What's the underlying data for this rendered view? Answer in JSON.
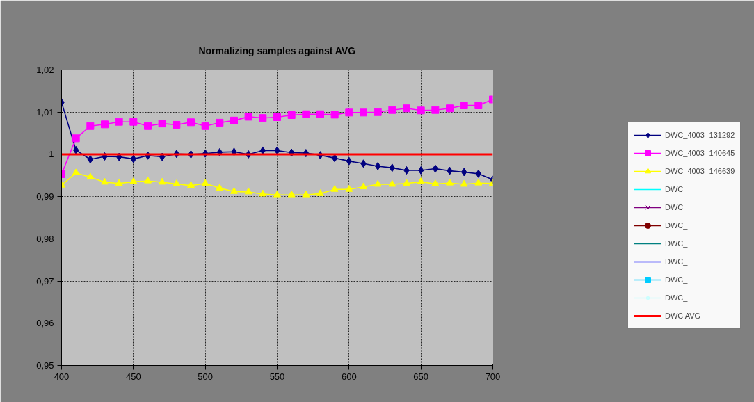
{
  "chart_data": {
    "type": "line",
    "title": "Normalizing samples against AVG",
    "x": [
      400,
      410,
      420,
      430,
      440,
      450,
      460,
      470,
      480,
      490,
      500,
      510,
      520,
      530,
      540,
      550,
      560,
      570,
      580,
      590,
      600,
      610,
      620,
      630,
      640,
      650,
      660,
      670,
      680,
      690,
      700
    ],
    "xlim": [
      400,
      700
    ],
    "xticks": [
      400,
      450,
      500,
      550,
      600,
      650,
      700
    ],
    "ylim": [
      0.95,
      1.02
    ],
    "yticks": [
      {
        "value": 0.95,
        "label": "0,95"
      },
      {
        "value": 0.96,
        "label": "0,96"
      },
      {
        "value": 0.97,
        "label": "0,97"
      },
      {
        "value": 0.98,
        "label": "0,98"
      },
      {
        "value": 0.99,
        "label": "0,99"
      },
      {
        "value": 1,
        "label": "1"
      },
      {
        "value": 1.01,
        "label": "1,01"
      },
      {
        "value": 1.02,
        "label": "1,02"
      }
    ],
    "grid": true,
    "legend": "right",
    "series": [
      {
        "name": "DWC_4003 -131292",
        "color": "#000080",
        "marker": "diamond",
        "values": [
          1.0123,
          1.001,
          0.9988,
          0.9995,
          0.9994,
          0.9989,
          0.9997,
          0.9994,
          1.0001,
          1.0,
          1.0002,
          1.0005,
          1.0006,
          1.0,
          1.0009,
          1.0009,
          1.0004,
          1.0003,
          0.9998,
          0.9991,
          0.9984,
          0.9978,
          0.9972,
          0.9968,
          0.9962,
          0.9962,
          0.9966,
          0.9961,
          0.9958,
          0.9954,
          0.994
        ]
      },
      {
        "name": "DWC_4003 -140645",
        "color": "#ff00ff",
        "marker": "square",
        "values": [
          0.9953,
          1.0038,
          1.0067,
          1.0071,
          1.0077,
          1.0077,
          1.0067,
          1.0073,
          1.007,
          1.0076,
          1.0067,
          1.0075,
          1.008,
          1.0089,
          1.0086,
          1.0088,
          1.0093,
          1.0095,
          1.0095,
          1.0094,
          1.0099,
          1.0099,
          1.01,
          1.0105,
          1.0109,
          1.0104,
          1.0105,
          1.0109,
          1.0116,
          1.0116,
          1.013
        ]
      },
      {
        "name": "DWC_4003 -146639",
        "color": "#ffff00",
        "marker": "triangle",
        "values": [
          0.9927,
          0.9956,
          0.9946,
          0.9934,
          0.9931,
          0.9935,
          0.9937,
          0.9934,
          0.993,
          0.9926,
          0.9931,
          0.992,
          0.9912,
          0.9911,
          0.9906,
          0.9904,
          0.9904,
          0.9904,
          0.9907,
          0.9917,
          0.9917,
          0.9923,
          0.9929,
          0.9929,
          0.9931,
          0.9935,
          0.993,
          0.9932,
          0.9929,
          0.9932,
          0.9931
        ]
      },
      {
        "name": "DWC_",
        "color": "#00ffff",
        "marker": "cross",
        "values": [
          null,
          null,
          null,
          null,
          null,
          null,
          null,
          null,
          null,
          null,
          null,
          null,
          null,
          null,
          null,
          null,
          null,
          null,
          null,
          null,
          null,
          null,
          null,
          null,
          null,
          null,
          null,
          null,
          null,
          null,
          null
        ]
      },
      {
        "name": "DWC_",
        "color": "#800080",
        "marker": "star",
        "values": [
          null,
          null,
          null,
          null,
          null,
          null,
          null,
          null,
          null,
          null,
          null,
          null,
          null,
          null,
          null,
          null,
          null,
          null,
          null,
          null,
          null,
          null,
          null,
          null,
          null,
          null,
          null,
          null,
          null,
          null,
          null
        ]
      },
      {
        "name": "DWC_",
        "color": "#800000",
        "marker": "circle",
        "values": [
          null,
          null,
          null,
          null,
          null,
          null,
          null,
          null,
          null,
          null,
          null,
          null,
          null,
          null,
          null,
          null,
          null,
          null,
          null,
          null,
          null,
          null,
          null,
          null,
          null,
          null,
          null,
          null,
          null,
          null,
          null
        ]
      },
      {
        "name": "DWC_",
        "color": "#008080",
        "marker": "cross",
        "values": [
          null,
          null,
          null,
          null,
          null,
          null,
          null,
          null,
          null,
          null,
          null,
          null,
          null,
          null,
          null,
          null,
          null,
          null,
          null,
          null,
          null,
          null,
          null,
          null,
          null,
          null,
          null,
          null,
          null,
          null,
          null
        ]
      },
      {
        "name": "DWC_",
        "color": "#0000ff",
        "marker": "none",
        "values": [
          null,
          null,
          null,
          null,
          null,
          null,
          null,
          null,
          null,
          null,
          null,
          null,
          null,
          null,
          null,
          null,
          null,
          null,
          null,
          null,
          null,
          null,
          null,
          null,
          null,
          null,
          null,
          null,
          null,
          null,
          null
        ]
      },
      {
        "name": "DWC_",
        "color": "#00ccff",
        "marker": "square",
        "values": [
          null,
          null,
          null,
          null,
          null,
          null,
          null,
          null,
          null,
          null,
          null,
          null,
          null,
          null,
          null,
          null,
          null,
          null,
          null,
          null,
          null,
          null,
          null,
          null,
          null,
          null,
          null,
          null,
          null,
          null,
          null
        ]
      },
      {
        "name": "DWC_",
        "color": "#ccffff",
        "marker": "diamond",
        "values": [
          null,
          null,
          null,
          null,
          null,
          null,
          null,
          null,
          null,
          null,
          null,
          null,
          null,
          null,
          null,
          null,
          null,
          null,
          null,
          null,
          null,
          null,
          null,
          null,
          null,
          null,
          null,
          null,
          null,
          null,
          null
        ]
      },
      {
        "name": "DWC AVG",
        "color": "#ff0000",
        "marker": "none",
        "values": [
          1,
          1,
          1,
          1,
          1,
          1,
          1,
          1,
          1,
          1,
          1,
          1,
          1,
          1,
          1,
          1,
          1,
          1,
          1,
          1,
          1,
          1,
          1,
          1,
          1,
          1,
          1,
          1,
          1,
          1,
          1
        ]
      }
    ]
  }
}
